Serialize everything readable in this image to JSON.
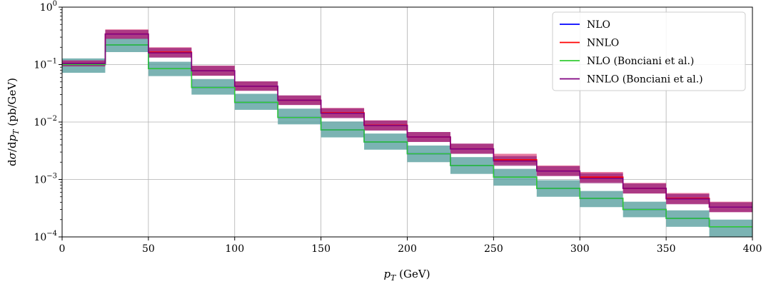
{
  "chart_data": {
    "type": "line",
    "step": true,
    "xlabel": "p_T (GeV)",
    "ylabel": "dσ/dp_T (pb/GeV)",
    "xlim": [
      0,
      400
    ],
    "ylim": [
      0.0001,
      1
    ],
    "yscale": "log",
    "grid": true,
    "legend_position": "top-right",
    "xticks": [
      0,
      50,
      100,
      150,
      200,
      250,
      300,
      350,
      400
    ],
    "xtick_labels": [
      "0",
      "50",
      "100",
      "150",
      "200",
      "250",
      "300",
      "350",
      "400"
    ],
    "yticks": [
      0.0001,
      0.001,
      0.01,
      0.1,
      1
    ],
    "ytick_labels": [
      {
        "base": "10",
        "exp": "−4"
      },
      {
        "base": "10",
        "exp": "−3"
      },
      {
        "base": "10",
        "exp": "−2"
      },
      {
        "base": "10",
        "exp": "−1"
      },
      {
        "base": "10",
        "exp": "0"
      }
    ],
    "bin_edges": [
      0,
      25,
      50,
      75,
      100,
      125,
      150,
      175,
      200,
      225,
      250,
      275,
      300,
      325,
      350,
      375,
      400
    ],
    "series": [
      {
        "name": "NLO",
        "color": "#0000ff",
        "values": [
          0.1,
          0.22,
          0.085,
          0.04,
          0.022,
          0.012,
          0.0073,
          0.0045,
          0.0028,
          0.00175,
          0.0011,
          0.0007,
          0.00047,
          0.0003,
          0.00021,
          0.00015
        ],
        "band_low": [
          0.072,
          0.165,
          0.063,
          0.03,
          0.0163,
          0.0091,
          0.0054,
          0.0033,
          0.002,
          0.00125,
          0.00078,
          0.0005,
          0.00033,
          0.00022,
          0.00015,
          0.0001
        ],
        "band_high": [
          0.128,
          0.3,
          0.112,
          0.056,
          0.031,
          0.0171,
          0.0102,
          0.0063,
          0.0039,
          0.00245,
          0.00153,
          0.00097,
          0.00063,
          0.00041,
          0.00029,
          0.0002
        ],
        "band_color": "#5aa0a0"
      },
      {
        "name": "NNLO",
        "color": "#ff0000",
        "values": [
          0.105,
          0.34,
          0.165,
          0.078,
          0.042,
          0.024,
          0.0145,
          0.0088,
          0.0055,
          0.0034,
          0.0022,
          0.0014,
          0.0011,
          0.0007,
          0.00047,
          0.00033
        ],
        "band_low": [
          0.093,
          0.285,
          0.135,
          0.064,
          0.035,
          0.0198,
          0.012,
          0.0072,
          0.0045,
          0.0028,
          0.00182,
          0.00115,
          0.0009,
          0.00057,
          0.00038,
          0.00027
        ],
        "band_high": [
          0.118,
          0.41,
          0.2,
          0.096,
          0.051,
          0.029,
          0.0176,
          0.0107,
          0.0067,
          0.0042,
          0.0028,
          0.00175,
          0.00135,
          0.00087,
          0.00058,
          0.00041
        ],
        "band_color": "#e05a8a"
      },
      {
        "name": "NLO (Bonciani et al.)",
        "color": "#33cc33",
        "values": [
          0.1,
          0.22,
          0.085,
          0.04,
          0.022,
          0.012,
          0.0073,
          0.0045,
          0.0028,
          0.00175,
          0.0011,
          0.0007,
          0.00047,
          0.0003,
          0.00021,
          0.00015
        ]
      },
      {
        "name": "NNLO (Bonciani et al.)",
        "color": "#800080",
        "values": [
          0.105,
          0.34,
          0.16,
          0.078,
          0.042,
          0.024,
          0.0142,
          0.0087,
          0.0055,
          0.0034,
          0.0021,
          0.0014,
          0.00105,
          0.0007,
          0.00046,
          0.00033
        ],
        "band_low": [
          0.093,
          0.28,
          0.132,
          0.064,
          0.035,
          0.0198,
          0.0117,
          0.0071,
          0.0045,
          0.0028,
          0.00173,
          0.00115,
          0.00086,
          0.00057,
          0.00037,
          0.00027
        ],
        "band_high": [
          0.118,
          0.4,
          0.195,
          0.095,
          0.051,
          0.029,
          0.0173,
          0.0106,
          0.0067,
          0.0042,
          0.00255,
          0.0017,
          0.00128,
          0.00085,
          0.00056,
          0.0004
        ],
        "band_color": "#9e2a7e"
      }
    ]
  }
}
